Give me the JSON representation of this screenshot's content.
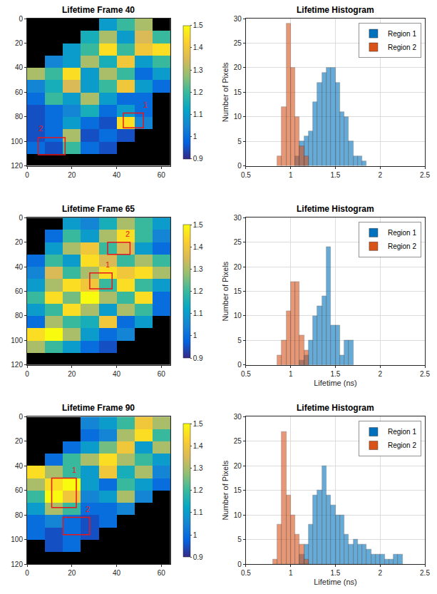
{
  "chart_data": [
    {
      "type": "heatmap",
      "title": "Lifetime Frame 40",
      "x": [
        4,
        12,
        20,
        28,
        36,
        44,
        52,
        60
      ],
      "y": [
        5,
        15,
        25,
        35,
        45,
        55,
        65,
        75,
        85,
        95,
        105,
        115
      ],
      "cells": [
        [
          null,
          null,
          null,
          null,
          1.1,
          1.2,
          1.3,
          null
        ],
        [
          null,
          null,
          null,
          1.15,
          1.3,
          1.1,
          1.35,
          1.2
        ],
        [
          null,
          null,
          1.1,
          1.2,
          1.45,
          1.2,
          1.4,
          1.45
        ],
        [
          null,
          1.05,
          1.1,
          1.3,
          1.15,
          1.4,
          1.1,
          1.2
        ],
        [
          1.3,
          1.2,
          1.45,
          1.1,
          1.3,
          1.2,
          1.0,
          1.1
        ],
        [
          1.05,
          1.15,
          1.35,
          1.1,
          1.2,
          1.4,
          1.1,
          1.0
        ],
        [
          1.0,
          1.2,
          1.1,
          1.3,
          1.1,
          1.0,
          1.0,
          null
        ],
        [
          0.95,
          1.0,
          1.05,
          1.15,
          1.0,
          1.1,
          1.0,
          null
        ],
        [
          0.95,
          1.0,
          1.1,
          1.0,
          0.95,
          1.45,
          1.05,
          null
        ],
        [
          0.95,
          1.0,
          1.3,
          0.95,
          1.0,
          0.95,
          null,
          null
        ],
        [
          1.0,
          0.95,
          1.2,
          1.0,
          0.95,
          null,
          null,
          null
        ],
        [
          null,
          null,
          null,
          null,
          null,
          null,
          null,
          null
        ]
      ],
      "xlim": [
        0,
        64
      ],
      "xticks": [
        0,
        20,
        40,
        60
      ],
      "ylim": [
        120,
        0
      ],
      "yticks": [
        0,
        20,
        40,
        60,
        80,
        100,
        120
      ],
      "colorbar_range": [
        0.9,
        1.5
      ],
      "colorbar_ticks": [
        0.9,
        1,
        1.1,
        1.2,
        1.3,
        1.4,
        1.5
      ],
      "regions": [
        {
          "label": "1",
          "x0": 43,
          "x1": 52,
          "y0": 77,
          "y1": 89,
          "label_x": 53,
          "label_y": 75
        },
        {
          "label": "2",
          "x0": 5,
          "x1": 17,
          "y0": 97,
          "y1": 111,
          "label_x": 6,
          "label_y": 94
        }
      ]
    },
    {
      "type": "histogram",
      "title": "Lifetime Histogram",
      "y_label": "Number of Pixels",
      "series": [
        {
          "name": "Region 1",
          "color": "#0072bd",
          "bins": [
            1.05,
            1.1,
            1.15,
            1.2,
            1.25,
            1.3,
            1.35,
            1.4,
            1.45,
            1.5,
            1.55,
            1.6,
            1.65,
            1.7,
            1.75,
            1.8,
            1.85
          ],
          "values": [
            2,
            5,
            6,
            7,
            13,
            17,
            19,
            20,
            20,
            17,
            11,
            10,
            5,
            2,
            2,
            1
          ]
        },
        {
          "name": "Region 2",
          "color": "#d95319",
          "bins": [
            0.85,
            0.9,
            0.95,
            1.0,
            1.05,
            1.1,
            1.15,
            1.2
          ],
          "values": [
            2,
            12,
            29,
            20,
            10,
            4,
            2
          ]
        }
      ],
      "xlim": [
        0.5,
        2.5
      ],
      "xticks": [
        0.5,
        1,
        1.5,
        2,
        2.5
      ],
      "ylim": [
        0,
        30
      ],
      "yticks": [
        0,
        5,
        10,
        15,
        20,
        25,
        30
      ],
      "grid": true,
      "legend": "northeast"
    },
    {
      "type": "heatmap",
      "title": "Lifetime Frame 65",
      "x": [
        4,
        12,
        20,
        28,
        36,
        44,
        52,
        60
      ],
      "y": [
        5,
        15,
        25,
        35,
        45,
        55,
        65,
        75,
        85,
        95,
        105,
        115
      ],
      "cells": [
        [
          null,
          null,
          1.1,
          1.05,
          1.15,
          1.3,
          1.2,
          1.1
        ],
        [
          null,
          1.0,
          1.2,
          1.1,
          1.3,
          1.45,
          1.2,
          1.05
        ],
        [
          null,
          1.1,
          1.3,
          1.4,
          1.2,
          1.35,
          1.1,
          1.0
        ],
        [
          1.0,
          1.2,
          1.1,
          1.45,
          1.35,
          1.2,
          1.3,
          1.2
        ],
        [
          1.05,
          1.35,
          1.2,
          1.3,
          1.45,
          1.4,
          1.45,
          1.3
        ],
        [
          1.1,
          1.3,
          1.45,
          1.4,
          1.2,
          1.45,
          1.2,
          1.1
        ],
        [
          1.2,
          1.45,
          1.25,
          1.5,
          1.3,
          1.2,
          1.45,
          1.0
        ],
        [
          1.1,
          1.2,
          1.45,
          1.3,
          1.1,
          1.3,
          1.2,
          1.0
        ],
        [
          1.0,
          1.3,
          1.2,
          1.15,
          1.4,
          1.0,
          1.1,
          null
        ],
        [
          1.45,
          1.5,
          1.3,
          1.1,
          1.0,
          1.05,
          null,
          null
        ],
        [
          1.3,
          1.2,
          1.1,
          1.0,
          0.95,
          null,
          null,
          null
        ],
        [
          null,
          null,
          null,
          null,
          null,
          null,
          null,
          null
        ]
      ],
      "xlim": [
        0,
        64
      ],
      "xticks": [
        0,
        20,
        40,
        60
      ],
      "ylim": [
        120,
        0
      ],
      "yticks": [
        0,
        20,
        40,
        60,
        80,
        100,
        120
      ],
      "colorbar_range": [
        0.9,
        1.5
      ],
      "colorbar_ticks": [
        0.9,
        1,
        1.1,
        1.2,
        1.3,
        1.4,
        1.5
      ],
      "regions": [
        {
          "label": "1",
          "x0": 28,
          "x1": 38,
          "y0": 45,
          "y1": 58,
          "label_x": 36,
          "label_y": 43
        },
        {
          "label": "2",
          "x0": 36,
          "x1": 46,
          "y0": 20,
          "y1": 30,
          "label_x": 45,
          "label_y": 18
        }
      ]
    },
    {
      "type": "histogram",
      "title": "Lifetime Histogram",
      "x_label": "Lifetime (ns)",
      "y_label": "Number of Pixels",
      "series": [
        {
          "name": "Region 1",
          "color": "#0072bd",
          "bins": [
            1.1,
            1.15,
            1.2,
            1.25,
            1.3,
            1.35,
            1.4,
            1.45,
            1.5,
            1.55,
            1.6,
            1.65,
            1.7
          ],
          "values": [
            1,
            2,
            5,
            10,
            12,
            14,
            24,
            8,
            8,
            2,
            5,
            5
          ]
        },
        {
          "name": "Region 2",
          "color": "#d95319",
          "bins": [
            0.85,
            0.9,
            0.95,
            1.0,
            1.05,
            1.1,
            1.15,
            1.2
          ],
          "values": [
            2,
            5,
            11,
            17,
            17,
            6,
            3
          ]
        }
      ],
      "xlim": [
        0.5,
        2.5
      ],
      "xticks": [
        0.5,
        1,
        1.5,
        2,
        2.5
      ],
      "ylim": [
        0,
        30
      ],
      "yticks": [
        0,
        5,
        10,
        15,
        20,
        25,
        30
      ],
      "grid": true,
      "legend": "northeast"
    },
    {
      "type": "heatmap",
      "title": "Lifetime Frame 90",
      "x": [
        4,
        12,
        20,
        28,
        36,
        44,
        52,
        60
      ],
      "y": [
        5,
        15,
        25,
        35,
        45,
        55,
        65,
        75,
        85,
        95,
        105,
        115
      ],
      "cells": [
        [
          null,
          null,
          null,
          1.05,
          1.1,
          1.2,
          1.4,
          1.3
        ],
        [
          null,
          null,
          null,
          1.0,
          1.05,
          1.3,
          1.45,
          1.2
        ],
        [
          null,
          null,
          1.0,
          1.1,
          1.25,
          1.4,
          1.1,
          1.3
        ],
        [
          null,
          1.0,
          1.2,
          1.3,
          1.45,
          1.3,
          1.2,
          1.1
        ],
        [
          1.45,
          1.3,
          1.2,
          1.1,
          1.4,
          1.15,
          1.3,
          1.05
        ],
        [
          1.3,
          1.45,
          1.5,
          1.1,
          1.0,
          1.2,
          1.1,
          1.0
        ],
        [
          1.2,
          1.5,
          1.4,
          1.05,
          1.1,
          1.3,
          1.05,
          null
        ],
        [
          1.1,
          1.3,
          1.2,
          1.0,
          1.0,
          1.05,
          null,
          null
        ],
        [
          1.0,
          1.05,
          1.0,
          0.95,
          1.0,
          null,
          null,
          null
        ],
        [
          1.0,
          0.95,
          1.0,
          0.95,
          null,
          null,
          null,
          null
        ],
        [
          null,
          0.95,
          1.0,
          null,
          null,
          null,
          null,
          null
        ],
        [
          null,
          null,
          null,
          null,
          null,
          null,
          null,
          null
        ]
      ],
      "xlim": [
        0,
        64
      ],
      "xticks": [
        0,
        20,
        40,
        60
      ],
      "ylim": [
        120,
        0
      ],
      "yticks": [
        0,
        20,
        40,
        60,
        80,
        100,
        120
      ],
      "colorbar_range": [
        0.9,
        1.5
      ],
      "colorbar_ticks": [
        0.9,
        1,
        1.1,
        1.2,
        1.3,
        1.4,
        1.5
      ],
      "regions": [
        {
          "label": "1",
          "x0": 11,
          "x1": 22,
          "y0": 50,
          "y1": 74,
          "label_x": 21,
          "label_y": 48
        },
        {
          "label": "2",
          "x0": 16,
          "x1": 28,
          "y0": 82,
          "y1": 96,
          "label_x": 27,
          "label_y": 80
        }
      ]
    },
    {
      "type": "histogram",
      "title": "Lifetime Histogram",
      "x_label": "Lifetime (ns)",
      "y_label": "Number of Pixels",
      "series": [
        {
          "name": "Region 1",
          "color": "#0072bd",
          "bins": [
            1.1,
            1.15,
            1.2,
            1.25,
            1.3,
            1.35,
            1.4,
            1.45,
            1.5,
            1.55,
            1.6,
            1.65,
            1.7,
            1.75,
            1.8,
            1.85,
            1.9,
            1.95,
            2.0,
            2.05,
            2.1,
            2.15,
            2.2,
            2.25
          ],
          "values": [
            2,
            4,
            8,
            14,
            15,
            20,
            14,
            12,
            10,
            10,
            6,
            4,
            5,
            4,
            4,
            3,
            2,
            2,
            2,
            1,
            1,
            2,
            2
          ]
        },
        {
          "name": "Region 2",
          "color": "#d95319",
          "bins": [
            0.8,
            0.85,
            0.9,
            0.95,
            1.0,
            1.05,
            1.1,
            1.15,
            1.2
          ],
          "values": [
            1,
            8,
            27,
            14,
            10,
            6,
            4,
            1
          ]
        }
      ],
      "xlim": [
        0.5,
        2.5
      ],
      "xticks": [
        0.5,
        1,
        1.5,
        2,
        2.5
      ],
      "ylim": [
        0,
        30
      ],
      "yticks": [
        0,
        5,
        10,
        15,
        20,
        25,
        30
      ],
      "grid": true,
      "legend": "northeast"
    }
  ]
}
